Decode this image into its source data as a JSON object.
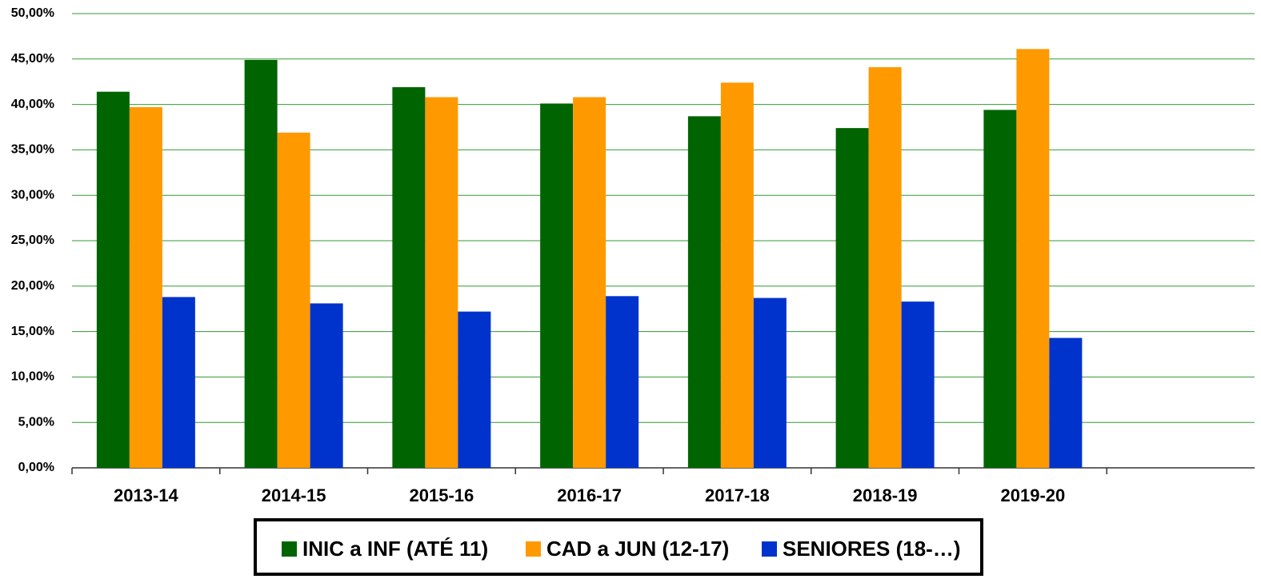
{
  "chart_data": {
    "type": "bar",
    "categories": [
      "2013-14",
      "2014-15",
      "2015-16",
      "2016-17",
      "2017-18",
      "2018-19",
      "2019-20",
      null
    ],
    "series": [
      {
        "name": "INIC a INF (ATÉ 11)",
        "color": "#006400",
        "values": [
          41.4,
          44.9,
          41.9,
          40.1,
          38.7,
          37.4,
          39.4,
          null
        ]
      },
      {
        "name": "CAD a JUN (12-17)",
        "color": "#ff9900",
        "values": [
          39.7,
          36.9,
          40.8,
          40.8,
          42.4,
          44.1,
          46.1,
          null
        ]
      },
      {
        "name": "SENIORES (18-…)",
        "color": "#0033cc",
        "values": [
          18.8,
          18.1,
          17.2,
          18.9,
          18.7,
          18.3,
          14.3,
          null
        ]
      }
    ],
    "ylim": [
      0,
      50
    ],
    "yticks": [
      {
        "value": 0,
        "label": "0,00%"
      },
      {
        "value": 5,
        "label": "5,00%"
      },
      {
        "value": 10,
        "label": "10,00%"
      },
      {
        "value": 15,
        "label": "15,00%"
      },
      {
        "value": 20,
        "label": "20,00%"
      },
      {
        "value": 25,
        "label": "25,00%"
      },
      {
        "value": 30,
        "label": "30,00%"
      },
      {
        "value": 35,
        "label": "35,00%"
      },
      {
        "value": 40,
        "label": "40,00%"
      },
      {
        "value": 45,
        "label": "45,00%"
      },
      {
        "value": 50,
        "label": "50,00%"
      }
    ],
    "grid": true,
    "legend": "bottom"
  }
}
